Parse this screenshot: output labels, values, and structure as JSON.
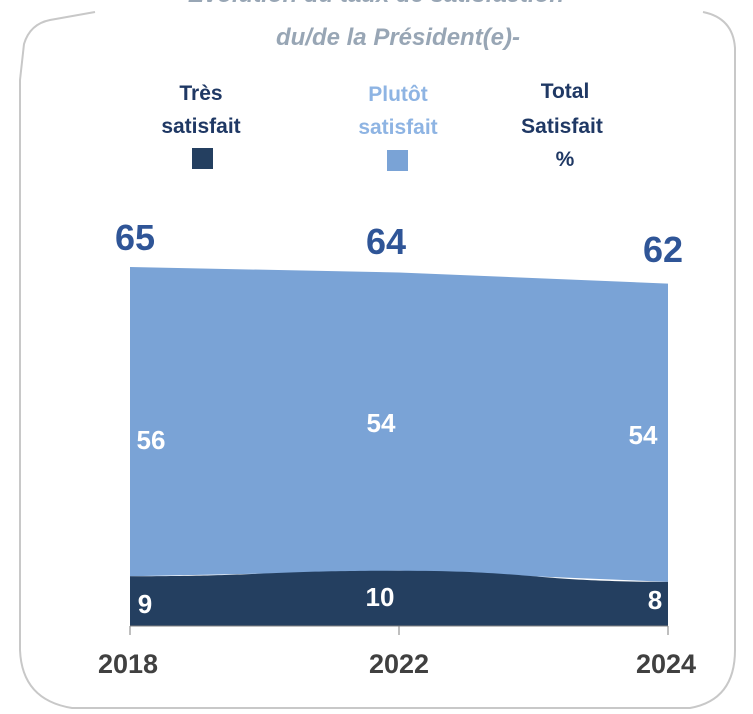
{
  "chart_data": {
    "type": "area",
    "title": "Evolution du taux de satisfaction du/de la Président(e)-",
    "title_lines": [
      "Evolution du taux de satisfaction",
      "du/de la Président(e)-"
    ],
    "categories": [
      "2018",
      "2022",
      "2024"
    ],
    "series": [
      {
        "name": "Très satisfait",
        "name_lines": [
          "Très",
          "satisfait"
        ],
        "values": [
          9,
          10,
          8
        ],
        "color": "#243f60"
      },
      {
        "name": "Plutôt satisfait",
        "name_lines": [
          "Plutôt",
          "satisfait"
        ],
        "values": [
          56,
          54,
          54
        ],
        "color": "#7aa3d6"
      }
    ],
    "totals_label_lines": [
      "Total",
      "Satisfait",
      "%"
    ],
    "totals": [
      65,
      64,
      62
    ],
    "ylim": [
      0,
      65
    ],
    "stacked": true,
    "grid": false,
    "legend": "top",
    "colors": {
      "title": "#98a6b5",
      "dark": "#243f60",
      "light": "#7aa3d6",
      "total_text": "#2f5597",
      "legend_dark_text": "#1f3864",
      "legend_light_text": "#8eb4e3",
      "axis_text": "#404040"
    }
  }
}
